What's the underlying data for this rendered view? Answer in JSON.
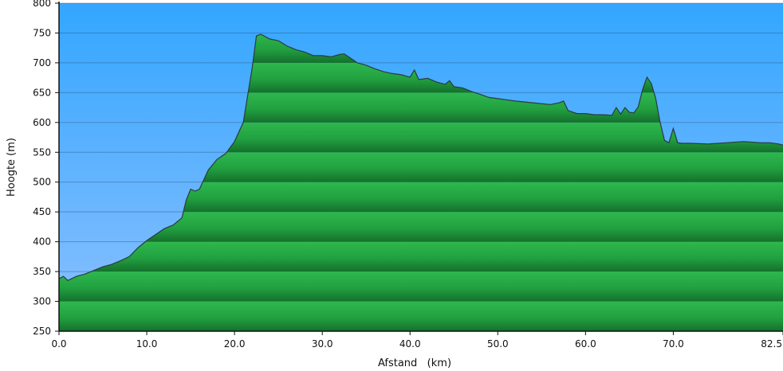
{
  "chart_data": {
    "type": "area",
    "xlabel": "Afstand   (km)",
    "ylabel": "Hoogte (m)",
    "xlim": [
      0,
      82.5
    ],
    "ylim": [
      250,
      800
    ],
    "x_ticks": [
      0,
      10,
      20,
      30,
      40,
      50,
      60,
      70,
      82.5
    ],
    "x_tick_labels": [
      "0.0",
      "10.0",
      "20.0",
      "30.0",
      "40.0",
      "50.0",
      "60.0",
      "70.0",
      "82.5"
    ],
    "y_ticks": [
      250,
      300,
      350,
      400,
      450,
      500,
      550,
      600,
      650,
      700,
      750,
      800
    ],
    "y_tick_labels": [
      "250",
      "300",
      "350",
      "400",
      "450",
      "500",
      "550",
      "600",
      "650",
      "700",
      "750",
      "800"
    ],
    "grid": true,
    "colors": {
      "sky_top": "#33a6ff",
      "sky_bottom": "#8cc0ff",
      "fill_light": "#2eb84e",
      "fill_dark": "#14702c",
      "line": "#2a3b40"
    },
    "x": [
      0,
      0.5,
      1.0,
      2,
      3,
      4,
      5,
      6,
      7,
      8,
      9,
      10,
      11,
      12,
      13,
      14,
      14.5,
      15,
      15.5,
      16,
      17,
      18,
      19,
      20,
      21,
      22,
      22.5,
      23,
      24,
      25,
      26,
      27,
      28,
      29,
      30,
      31,
      32,
      32.5,
      33,
      34,
      35,
      36,
      37,
      38,
      39,
      40,
      40.5,
      41,
      42,
      43,
      44,
      44.5,
      45,
      46,
      47,
      48,
      49,
      50,
      52,
      54,
      56,
      57,
      57.5,
      58,
      59,
      60,
      61,
      62,
      63,
      63.5,
      64,
      64.5,
      65,
      65.5,
      66,
      66.5,
      67,
      67.5,
      68,
      68.5,
      69,
      69.5,
      70,
      70.5,
      71,
      72,
      74,
      76,
      78,
      80,
      81,
      82,
      82.5
    ],
    "values": [
      338,
      342,
      335,
      342,
      346,
      352,
      358,
      362,
      368,
      375,
      390,
      402,
      412,
      422,
      428,
      440,
      470,
      488,
      485,
      488,
      520,
      538,
      548,
      568,
      600,
      690,
      745,
      748,
      740,
      737,
      728,
      722,
      718,
      712,
      712,
      710,
      714,
      715,
      710,
      700,
      696,
      690,
      685,
      682,
      680,
      676,
      688,
      672,
      674,
      668,
      664,
      670,
      660,
      658,
      652,
      647,
      642,
      640,
      636,
      633,
      630,
      633,
      636,
      620,
      615,
      615,
      613,
      613,
      612,
      625,
      614,
      625,
      617,
      616,
      626,
      655,
      676,
      665,
      640,
      600,
      570,
      566,
      590,
      566,
      565,
      565,
      564,
      566,
      568,
      566,
      566,
      564,
      562
    ]
  }
}
